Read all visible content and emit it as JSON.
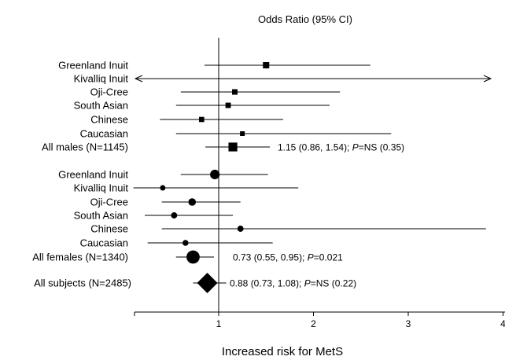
{
  "chart_data": {
    "type": "forest",
    "title": "Odds Ratio (95% CI)",
    "xlabel": "Increased risk for MetS",
    "xlim": [
      0.1,
      4
    ],
    "xticks": [
      "1",
      "2",
      "3",
      "4"
    ],
    "xtick_values": [
      1,
      2,
      3,
      4
    ],
    "reference_line": 1,
    "rows": [
      {
        "label": "Greenland Inuit",
        "group": "males",
        "marker": "square",
        "or": 1.5,
        "lo": 0.85,
        "hi": 2.6,
        "size": 1.0
      },
      {
        "label": "Kivalliq Inuit",
        "group": "males",
        "marker": "none",
        "or": null,
        "lo": 0.1,
        "hi": 4,
        "arrows": "both",
        "size": 0
      },
      {
        "label": "Oji-Cree",
        "group": "males",
        "marker": "square",
        "or": 1.17,
        "lo": 0.6,
        "hi": 2.28,
        "size": 0.75
      },
      {
        "label": "South Asian",
        "group": "males",
        "marker": "square",
        "or": 1.1,
        "lo": 0.55,
        "hi": 2.17,
        "size": 0.7
      },
      {
        "label": "Chinese",
        "group": "males",
        "marker": "square",
        "or": 0.82,
        "lo": 0.38,
        "hi": 1.68,
        "size": 0.65
      },
      {
        "label": "Caucasian",
        "group": "males",
        "marker": "square",
        "or": 1.25,
        "lo": 0.55,
        "hi": 2.82,
        "size": 0.5
      },
      {
        "label": "All males (N=1145)",
        "group": "males",
        "marker": "square",
        "or": 1.15,
        "lo": 0.86,
        "hi": 1.54,
        "size": 1.8,
        "annotation_prefix": "1.15 (0.86, 1.54); ",
        "annotation_p": "P",
        "annotation_suffix": "=NS (0.35)"
      },
      {
        "label": "Greenland Inuit",
        "group": "females",
        "marker": "circle",
        "or": 0.96,
        "lo": 0.6,
        "hi": 1.52,
        "size": 1.3
      },
      {
        "label": "Kivalliq Inuit",
        "group": "females",
        "marker": "circle",
        "or": 0.41,
        "lo": 0.1,
        "hi": 1.84,
        "size": 0.5
      },
      {
        "label": "Oji-Cree",
        "group": "females",
        "marker": "circle",
        "or": 0.72,
        "lo": 0.4,
        "hi": 1.23,
        "size": 0.9
      },
      {
        "label": "South Asian",
        "group": "females",
        "marker": "circle",
        "or": 0.53,
        "lo": 0.22,
        "hi": 1.15,
        "size": 0.65
      },
      {
        "label": "Chinese",
        "group": "females",
        "marker": "circle",
        "or": 1.23,
        "lo": 0.4,
        "hi": 3.82,
        "size": 0.65
      },
      {
        "label": "Caucasian",
        "group": "females",
        "marker": "circle",
        "or": 0.65,
        "lo": 0.25,
        "hi": 1.57,
        "size": 0.6
      },
      {
        "label": "All females (N=1340)",
        "group": "females",
        "marker": "circle",
        "or": 0.73,
        "lo": 0.55,
        "hi": 0.95,
        "size": 2.0,
        "annotation_prefix": "0.73 (0.55, 0.95); ",
        "annotation_p": "P",
        "annotation_suffix": "=0.021"
      },
      {
        "label": "All subjects (N=2485)",
        "group": "all",
        "marker": "diamond",
        "or": 0.88,
        "lo": 0.73,
        "hi": 1.08,
        "size": 2.2,
        "annotation_prefix": "0.88 (0.73, 1.08); ",
        "annotation_p": "P",
        "annotation_suffix": "=NS (0.22)"
      }
    ]
  }
}
